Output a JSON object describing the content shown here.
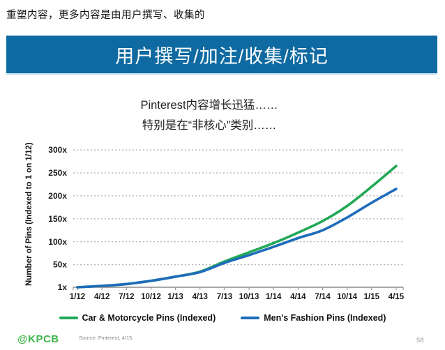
{
  "slide": {
    "kicker": "重塑内容，更多内容是由用户撰写、收集的",
    "banner_title": "用户撰写/加注/收集/标记",
    "logo": "@KPCB",
    "source_note": "Source: Pinterest, 4/15.",
    "page_number": "58"
  },
  "chart": {
    "title_line1": "Pinterest内容增长迅猛……",
    "title_line2": "特别是在“非核心”类别……"
  },
  "chart_data": {
    "type": "line",
    "title": "Pinterest内容增长迅猛…… 特别是在“非核心”类别……",
    "ylabel": "Number of Pins (Indexed to 1 on 1/12)",
    "xlabel": "",
    "x": [
      "1/12",
      "4/12",
      "7/12",
      "10/12",
      "1/13",
      "4/13",
      "7/13",
      "10/13",
      "1/14",
      "4/14",
      "7/14",
      "10/14",
      "1/15",
      "4/15"
    ],
    "yticks": [
      {
        "label": "1x",
        "value": 1
      },
      {
        "label": "50x",
        "value": 50
      },
      {
        "label": "100x",
        "value": 100
      },
      {
        "label": "150x",
        "value": 150
      },
      {
        "label": "200x",
        "value": 200
      },
      {
        "label": "250x",
        "value": 250
      },
      {
        "label": "300x",
        "value": 300
      }
    ],
    "ylim": [
      1,
      305
    ],
    "grid": "dotted-horizontal",
    "legend_position": "bottom",
    "series": [
      {
        "name": "Car & Motorcycle Pins (Indexed)",
        "color": "#21a857",
        "values": [
          1,
          4,
          8,
          15,
          24,
          35,
          57,
          77,
          97,
          120,
          145,
          178,
          220,
          265
        ]
      },
      {
        "name": "Men's Fashion Pins (Indexed)",
        "color": "#1e6cba",
        "values": [
          1,
          4,
          8,
          15,
          24,
          34,
          54,
          71,
          89,
          108,
          125,
          153,
          185,
          215
        ]
      }
    ],
    "colors": {
      "axis": "#8a8a8a",
      "gridline": "#9b9b9b",
      "tick_text": "#1a1a1a"
    }
  }
}
